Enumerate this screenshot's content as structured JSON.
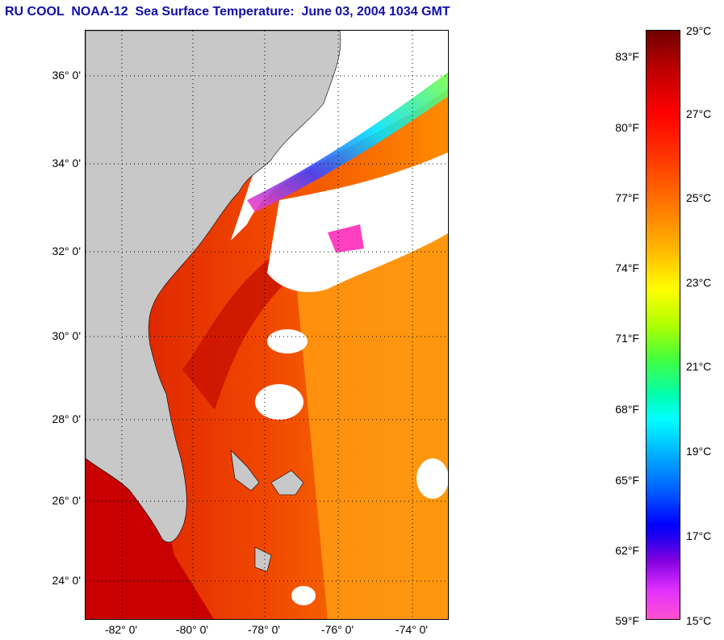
{
  "title": "RU COOL  NOAA-12  Sea Surface Temperature:  June 03, 2004 1034 GMT",
  "lat_labels": [
    "36° 0'",
    "34° 0'",
    "32° 0'",
    "30° 0'",
    "28° 0'",
    "26° 0'",
    "24° 0'"
  ],
  "lon_labels": [
    "-82° 0'",
    "-80° 0'",
    "-78° 0'",
    "-76° 0'",
    "-74° 0'"
  ],
  "colorbar": {
    "fahrenheit": [
      "83°F",
      "80°F",
      "77°F",
      "74°F",
      "71°F",
      "68°F",
      "65°F",
      "62°F",
      "59°F"
    ],
    "celsius": [
      "29°C",
      "27°C",
      "25°C",
      "23°C",
      "21°C",
      "19°C",
      "17°C",
      "15°C"
    ]
  },
  "colors": {
    "title": "#1010a8",
    "land": "#c8c8c8",
    "cloud": "#ffffff",
    "warm": "#e83000",
    "gulf_stream": "#d01000"
  },
  "icons": [
    "land-mask",
    "cloud-mask",
    "coastline",
    "bathymetry-contours",
    "graticule"
  ]
}
